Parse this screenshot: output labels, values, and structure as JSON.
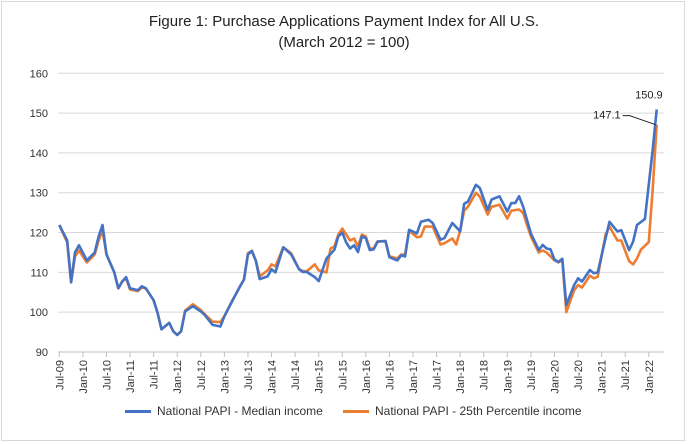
{
  "chart_data": {
    "type": "line",
    "title": "Figure 1: Purchase Applications Payment Index for All U.S.",
    "subtitle": "(March 2012 = 100)",
    "xlabel": "",
    "ylabel": "",
    "x_unit": "months since Jul-09",
    "ylim": [
      90,
      160
    ],
    "yticks": [
      90,
      100,
      110,
      120,
      130,
      140,
      150,
      160
    ],
    "xtick_labels": [
      "Jul-09",
      "Jan-10",
      "Jul-10",
      "Jan-11",
      "Jul-11",
      "Jan-12",
      "Jul-12",
      "Jan-13",
      "Jul-13",
      "Jan-14",
      "Jul-14",
      "Jan-15",
      "Jul-15",
      "Jan-16",
      "Jul-16",
      "Jan-17",
      "Jul-17",
      "Jan-18",
      "Jul-18",
      "Jan-19",
      "Jul-19",
      "Jan-20",
      "Jul-20",
      "Jan-21",
      "Jul-21",
      "Jan-22"
    ],
    "xtick_step_months": 6,
    "xlim": [
      0,
      152
    ],
    "grid": "horizontal",
    "legend_position": "bottom",
    "series": [
      {
        "name": "National PAPI - Median income",
        "color": "#4472c4",
        "points": [
          [
            0,
            121.9
          ],
          [
            2,
            118
          ],
          [
            3,
            107.5
          ],
          [
            4,
            115
          ],
          [
            5,
            116.8
          ],
          [
            7,
            113
          ],
          [
            9,
            115
          ],
          [
            10,
            119
          ],
          [
            11,
            121.9
          ],
          [
            12,
            114.5
          ],
          [
            14,
            110
          ],
          [
            15,
            106
          ],
          [
            16,
            107.7
          ],
          [
            17,
            108.8
          ],
          [
            18,
            106
          ],
          [
            20,
            105.5
          ],
          [
            21,
            106.5
          ],
          [
            22,
            106
          ],
          [
            24,
            103
          ],
          [
            25,
            99.8
          ],
          [
            26,
            95.7
          ],
          [
            28,
            97.3
          ],
          [
            29,
            95.2
          ],
          [
            30,
            94.3
          ],
          [
            31,
            95.2
          ],
          [
            32,
            100.2
          ],
          [
            34,
            101.5
          ],
          [
            36,
            100.2
          ],
          [
            37,
            99.3
          ],
          [
            39,
            96.8
          ],
          [
            41,
            96.4
          ],
          [
            42,
            99
          ],
          [
            44,
            102.8
          ],
          [
            46,
            106.5
          ],
          [
            47,
            108.2
          ],
          [
            48,
            114.5
          ],
          [
            49,
            115.4
          ],
          [
            50,
            112.9
          ],
          [
            51,
            108.3
          ],
          [
            53,
            109
          ],
          [
            54,
            110.8
          ],
          [
            55,
            110
          ],
          [
            57,
            116.3
          ],
          [
            59,
            114.5
          ],
          [
            61,
            110.8
          ],
          [
            62,
            110.1
          ],
          [
            63,
            110.1
          ],
          [
            65,
            108.8
          ],
          [
            66,
            107.8
          ],
          [
            68,
            113.5
          ],
          [
            70,
            115.7
          ],
          [
            71,
            119
          ],
          [
            72,
            120
          ],
          [
            73,
            117.5
          ],
          [
            74,
            116
          ],
          [
            75,
            116.8
          ],
          [
            76,
            115.1
          ],
          [
            77,
            119
          ],
          [
            78,
            118.6
          ],
          [
            79,
            115.6
          ],
          [
            80,
            115.8
          ],
          [
            81,
            117.7
          ],
          [
            83,
            117.9
          ],
          [
            84,
            113.8
          ],
          [
            86,
            113
          ],
          [
            87,
            114.3
          ],
          [
            88,
            114
          ],
          [
            89,
            120.7
          ],
          [
            91,
            119.8
          ],
          [
            92,
            122.7
          ],
          [
            94,
            123.2
          ],
          [
            95,
            122.4
          ],
          [
            97,
            118.2
          ],
          [
            98,
            118.6
          ],
          [
            100,
            122.4
          ],
          [
            102,
            120.3
          ],
          [
            103,
            127.2
          ],
          [
            104,
            127.8
          ],
          [
            106,
            132
          ],
          [
            107,
            131.2
          ],
          [
            109,
            125.7
          ],
          [
            110,
            128.3
          ],
          [
            112,
            129.1
          ],
          [
            114,
            125.3
          ],
          [
            115,
            127.4
          ],
          [
            116,
            127.4
          ],
          [
            117,
            129.1
          ],
          [
            118,
            126.6
          ],
          [
            120,
            119.8
          ],
          [
            122,
            115.6
          ],
          [
            123,
            116.9
          ],
          [
            124,
            116
          ],
          [
            125,
            115.8
          ],
          [
            126,
            113.2
          ],
          [
            127,
            112.6
          ],
          [
            128,
            113.4
          ],
          [
            129,
            101.8
          ],
          [
            131,
            106.8
          ],
          [
            132,
            108.5
          ],
          [
            133,
            107.7
          ],
          [
            135,
            110.6
          ],
          [
            136,
            109.8
          ],
          [
            137,
            110
          ],
          [
            139,
            118.6
          ],
          [
            140,
            122.7
          ],
          [
            142,
            120.3
          ],
          [
            143,
            120.6
          ],
          [
            145,
            115.6
          ],
          [
            146,
            117.7
          ],
          [
            147,
            121.9
          ],
          [
            149,
            123.4
          ],
          [
            151,
            140.8
          ],
          [
            152,
            150.9
          ]
        ]
      },
      {
        "name": "National PAPI - 25th Percentile income",
        "color": "#ed7d31",
        "points": [
          [
            0,
            121.9
          ],
          [
            2,
            117.5
          ],
          [
            3,
            107.5
          ],
          [
            4,
            114
          ],
          [
            5,
            115.5
          ],
          [
            7,
            112.5
          ],
          [
            9,
            114.5
          ],
          [
            10,
            118
          ],
          [
            11,
            120.5
          ],
          [
            12,
            114.5
          ],
          [
            14,
            110
          ],
          [
            15,
            106
          ],
          [
            16,
            107.7
          ],
          [
            17,
            108.5
          ],
          [
            18,
            105.7
          ],
          [
            20,
            105.3
          ],
          [
            21,
            106.2
          ],
          [
            22,
            106
          ],
          [
            24,
            103
          ],
          [
            25,
            99.8
          ],
          [
            26,
            95.7
          ],
          [
            28,
            97.3
          ],
          [
            29,
            95.2
          ],
          [
            30,
            94.3
          ],
          [
            31,
            95.2
          ],
          [
            32,
            100.4
          ],
          [
            34,
            102
          ],
          [
            36,
            100.5
          ],
          [
            37,
            99.5
          ],
          [
            39,
            97.6
          ],
          [
            41,
            97.5
          ],
          [
            42,
            99
          ],
          [
            44,
            102.8
          ],
          [
            46,
            106.5
          ],
          [
            47,
            108.2
          ],
          [
            48,
            114.8
          ],
          [
            49,
            115.4
          ],
          [
            50,
            113
          ],
          [
            51,
            109
          ],
          [
            53,
            110.5
          ],
          [
            54,
            112
          ],
          [
            55,
            111.5
          ],
          [
            57,
            116.3
          ],
          [
            59,
            114.8
          ],
          [
            61,
            110.8
          ],
          [
            62,
            110.3
          ],
          [
            63,
            110.3
          ],
          [
            65,
            112
          ],
          [
            66,
            110.5
          ],
          [
            68,
            110
          ],
          [
            69,
            116
          ],
          [
            70,
            116.5
          ],
          [
            71,
            119.5
          ],
          [
            72,
            121
          ],
          [
            73,
            119.5
          ],
          [
            74,
            118
          ],
          [
            75,
            118.5
          ],
          [
            76,
            116.5
          ],
          [
            77,
            119.5
          ],
          [
            78,
            119
          ],
          [
            79,
            116
          ],
          [
            80,
            116
          ],
          [
            81,
            117.8
          ],
          [
            83,
            117.8
          ],
          [
            84,
            114
          ],
          [
            86,
            113.5
          ],
          [
            87,
            114.5
          ],
          [
            88,
            114.5
          ],
          [
            89,
            120.5
          ],
          [
            91,
            118.8
          ],
          [
            92,
            119
          ],
          [
            93,
            121.5
          ],
          [
            95,
            121.5
          ],
          [
            97,
            117
          ],
          [
            98,
            117.3
          ],
          [
            100,
            118.5
          ],
          [
            101,
            117
          ],
          [
            102,
            120.5
          ],
          [
            103,
            125.5
          ],
          [
            104,
            126.5
          ],
          [
            106,
            130
          ],
          [
            107,
            129
          ],
          [
            109,
            124.5
          ],
          [
            110,
            126.5
          ],
          [
            112,
            127
          ],
          [
            114,
            123.5
          ],
          [
            115,
            125.5
          ],
          [
            117,
            125.8
          ],
          [
            118,
            125
          ],
          [
            120,
            119
          ],
          [
            122,
            115
          ],
          [
            123,
            115.5
          ],
          [
            124,
            115
          ],
          [
            126,
            113
          ],
          [
            127,
            112.5
          ],
          [
            128,
            113.2
          ],
          [
            129,
            100
          ],
          [
            131,
            105.5
          ],
          [
            132,
            106.8
          ],
          [
            133,
            106.2
          ],
          [
            135,
            109.2
          ],
          [
            136,
            108.5
          ],
          [
            137,
            108.9
          ],
          [
            139,
            119.5
          ],
          [
            140,
            121.5
          ],
          [
            142,
            118
          ],
          [
            143,
            118
          ],
          [
            145,
            112.8
          ],
          [
            146,
            112
          ],
          [
            147,
            113.5
          ],
          [
            148,
            115.7
          ],
          [
            150,
            117.6
          ],
          [
            151,
            131
          ],
          [
            152,
            147.1
          ]
        ]
      }
    ],
    "annotations": [
      {
        "text": "150.9",
        "series": 0,
        "x": 152,
        "y": 150.9
      },
      {
        "text": "147.1",
        "series": 1,
        "x": 152,
        "y": 147.1
      }
    ]
  }
}
